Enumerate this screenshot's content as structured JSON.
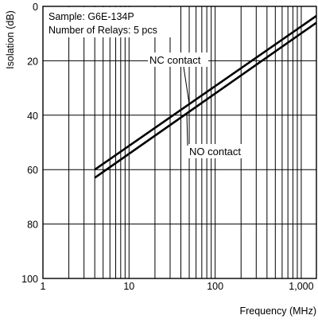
{
  "chart_data": {
    "type": "line",
    "xlabel": "Frequency (MHz)",
    "ylabel": "Isolation (dB)",
    "xscale": "log",
    "xlim": [
      1,
      1500
    ],
    "ylim": [
      0,
      100
    ],
    "y_inverted": true,
    "grid": true,
    "x_ticks": [
      {
        "value": 1,
        "label": "1"
      },
      {
        "value": 10,
        "label": "10"
      },
      {
        "value": 100,
        "label": "100"
      },
      {
        "value": 1000,
        "label": "1,000"
      }
    ],
    "y_ticks": [
      {
        "value": 0,
        "label": "0"
      },
      {
        "value": 20,
        "label": "20"
      },
      {
        "value": 40,
        "label": "40"
      },
      {
        "value": 60,
        "label": "60"
      },
      {
        "value": 80,
        "label": "80"
      },
      {
        "value": 100,
        "label": "100"
      }
    ],
    "annotations": [
      "Sample: G6E-134P",
      "Number of Relays: 5 pcs"
    ],
    "series": [
      {
        "name": "NC contact",
        "x": [
          4,
          1500
        ],
        "y": [
          60,
          3.5
        ]
      },
      {
        "name": "NO contact",
        "x": [
          4,
          1500
        ],
        "y": [
          63,
          6
        ]
      }
    ]
  }
}
